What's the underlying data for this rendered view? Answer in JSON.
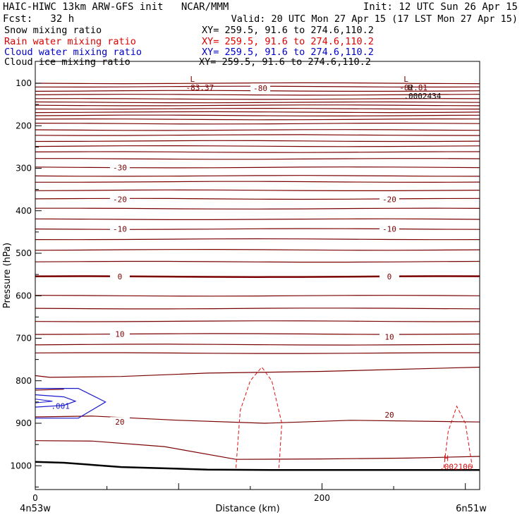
{
  "header": {
    "left_line1": "HAIC-HIWC 13km ARW-GFS init   NCAR/MMM",
    "left_line2": "Fcst:   32 h",
    "right_line1": "Init: 12 UTC Sun 26 Apr 15",
    "right_line2": "Valid: 20 UTC Mon 27 Apr 15 (17 LST Mon 27 Apr 15)",
    "fields": [
      {
        "label": "Snow mixing ratio",
        "xy": "XY= 259.5, 91.6 to 274.6,110.2",
        "color": "#000000"
      },
      {
        "label": "Rain water mixing ratio",
        "xy": "XY= 259.5, 91.6 to 274.6,110.2",
        "color": "#e00000"
      },
      {
        "label": "Cloud water mixing ratio",
        "xy": "XY= 259.5, 91.6 to 274.6,110.2",
        "color": "#0000cc"
      },
      {
        "label": "Cloud ice mixing ratio",
        "xy": "XY= 259.5, 91.6 to 274.6,110.2",
        "color": "#000000"
      }
    ]
  },
  "chart_data": {
    "type": "line",
    "title": "HAIC-HIWC 13km ARW-GFS init   NCAR/MMM",
    "xlabel": "Distance (km)",
    "ylabel": "Pressure (hPa)",
    "xlim": [
      0,
      310
    ],
    "ylim": [
      1050,
      70
    ],
    "x_ticks": [
      0,
      200
    ],
    "x_tick_labels": [
      "0",
      "200"
    ],
    "x_endpoints": [
      "4n53w",
      "6n51w"
    ],
    "y_ticks": [
      100,
      200,
      300,
      400,
      500,
      600,
      700,
      800,
      900,
      1000
    ],
    "y_tick_labels": [
      "100",
      "200",
      "300",
      "400",
      "500",
      "600",
      "700",
      "800",
      "900",
      "1000"
    ],
    "temperature_contour_labels": [
      {
        "text": "-80",
        "x": 157,
        "p": 112
      },
      {
        "text": "-30",
        "x": 59,
        "p": 298
      },
      {
        "text": "-20",
        "x": 59,
        "p": 373
      },
      {
        "text": "-20",
        "x": 247,
        "p": 373
      },
      {
        "text": "-10",
        "x": 59,
        "p": 443
      },
      {
        "text": "-10",
        "x": 247,
        "p": 443
      },
      {
        "text": "0",
        "x": 59,
        "p": 555
      },
      {
        "text": "0",
        "x": 247,
        "p": 555
      },
      {
        "text": "10",
        "x": 59,
        "p": 690
      },
      {
        "text": "10",
        "x": 247,
        "p": 697
      },
      {
        "text": "20",
        "x": 59,
        "p": 897
      },
      {
        "text": "20",
        "x": 247,
        "p": 880
      }
    ],
    "extrema": [
      {
        "kind": "L",
        "value": "-83.37",
        "x": 108,
        "p": 90
      },
      {
        "kind": "L",
        "value": "-82.81",
        "x": 257,
        "p": 90
      },
      {
        "kind": "H",
        "value": ".0002434",
        "x": 260,
        "p": 110
      },
      {
        "kind": "H",
        "value": ".002106",
        "x": 285,
        "p": 982
      }
    ],
    "cloud_water_label": ".001",
    "terrain_pressure": [
      [
        0,
        991
      ],
      [
        20,
        993
      ],
      [
        60,
        1003
      ],
      [
        120,
        1009
      ],
      [
        170,
        1010
      ],
      [
        310,
        1010
      ]
    ]
  }
}
